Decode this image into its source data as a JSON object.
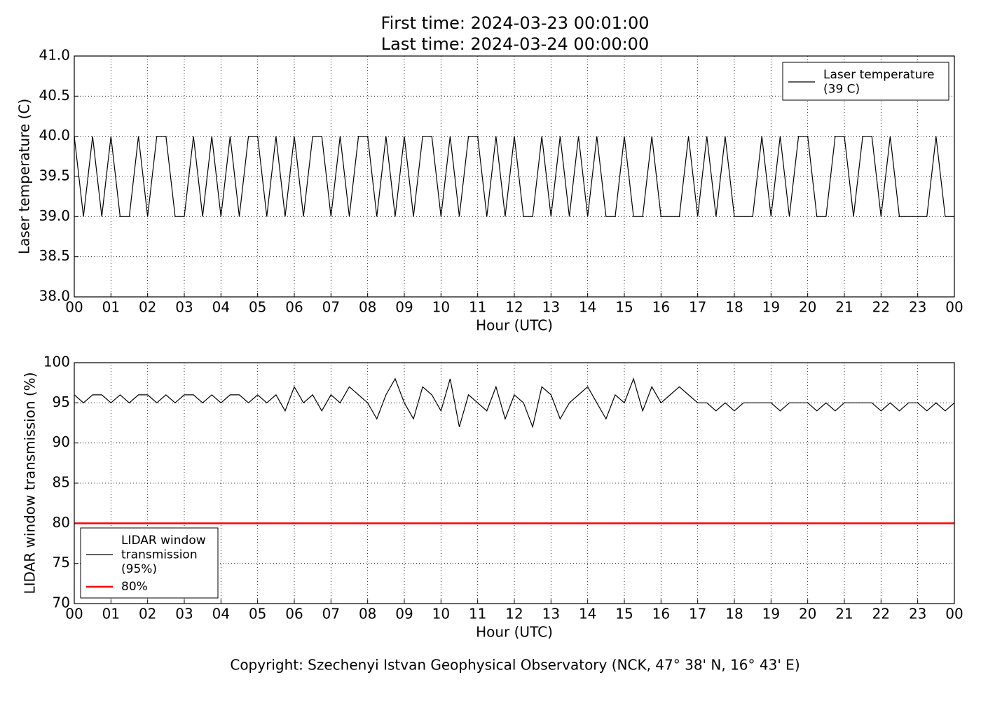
{
  "chart_data": [
    {
      "type": "line",
      "title": "First time: 2024-03-23 00:01:00",
      "subtitle": "Last time: 2024-03-24 00:00:00",
      "x_label": "Hour (UTC)",
      "y_label": "Laser temperature (C)",
      "grid": true,
      "legend": "upper right",
      "xlim": [
        0,
        24
      ],
      "ylim": [
        38,
        41
      ],
      "xticks": [
        {
          "value": 0,
          "label": "00"
        },
        {
          "value": 1,
          "label": "01"
        },
        {
          "value": 2,
          "label": "02"
        },
        {
          "value": 3,
          "label": "03"
        },
        {
          "value": 4,
          "label": "04"
        },
        {
          "value": 5,
          "label": "05"
        },
        {
          "value": 6,
          "label": "06"
        },
        {
          "value": 7,
          "label": "07"
        },
        {
          "value": 8,
          "label": "08"
        },
        {
          "value": 9,
          "label": "09"
        },
        10,
        11,
        12,
        13,
        14,
        15,
        16,
        17,
        18,
        19,
        20,
        21,
        22,
        23,
        {
          "value": 24,
          "label": "00"
        }
      ],
      "yticks": [
        {
          "value": 38,
          "label": "38.0"
        },
        38.5,
        {
          "value": 39,
          "label": "39.0"
        },
        39.5,
        {
          "value": 40,
          "label": "40.0"
        },
        40.5,
        {
          "value": 41,
          "label": "41.0"
        }
      ],
      "x": [
        0,
        0.25,
        0.5,
        0.75,
        1,
        1.25,
        1.5,
        1.75,
        2,
        2.25,
        2.5,
        2.75,
        3,
        3.25,
        3.5,
        3.75,
        4,
        4.25,
        4.5,
        4.75,
        5,
        5.25,
        5.5,
        5.75,
        6,
        6.25,
        6.5,
        6.75,
        7,
        7.25,
        7.5,
        7.75,
        8,
        8.25,
        8.5,
        8.75,
        9,
        9.25,
        9.5,
        9.75,
        10,
        10.25,
        10.5,
        10.75,
        11,
        11.25,
        11.5,
        11.75,
        12,
        12.25,
        12.5,
        12.75,
        13,
        13.25,
        13.5,
        13.75,
        14,
        14.25,
        14.5,
        14.75,
        15,
        15.25,
        15.5,
        15.75,
        16,
        16.25,
        16.5,
        16.75,
        17,
        17.25,
        17.5,
        17.75,
        18,
        18.25,
        18.5,
        18.75,
        19,
        19.25,
        19.5,
        19.75,
        20,
        20.25,
        20.5,
        20.75,
        21,
        21.25,
        21.5,
        21.75,
        22,
        22.25,
        22.5,
        22.75,
        23,
        23.25,
        23.5,
        23.75,
        24
      ],
      "series": [
        {
          "name": "Laser temperature\n(39 C)",
          "color": "#000000",
          "values": [
            40,
            39,
            40,
            39,
            40,
            39,
            39,
            40,
            39,
            40,
            40,
            39,
            39,
            40,
            39,
            40,
            39,
            40,
            39,
            40,
            40,
            39,
            40,
            39,
            40,
            39,
            40,
            40,
            39,
            40,
            39,
            40,
            40,
            39,
            40,
            39,
            40,
            39,
            40,
            40,
            39,
            40,
            39,
            40,
            40,
            39,
            40,
            39,
            40,
            39,
            39,
            40,
            39,
            40,
            39,
            40,
            39,
            40,
            39,
            39,
            40,
            39,
            39,
            40,
            39,
            39,
            39,
            40,
            39,
            40,
            39,
            40,
            39,
            39,
            39,
            40,
            39,
            40,
            39,
            40,
            40,
            39,
            39,
            40,
            40,
            39,
            40,
            40,
            39,
            40,
            39,
            39,
            39,
            39,
            40,
            39,
            39
          ]
        }
      ]
    },
    {
      "type": "line",
      "x_label": "Hour (UTC)",
      "y_label": "LIDAR window transmission (%)",
      "grid": true,
      "legend": "lower left",
      "xlim": [
        0,
        24
      ],
      "ylim": [
        70,
        100
      ],
      "xticks": [
        {
          "value": 0,
          "label": "00"
        },
        {
          "value": 1,
          "label": "01"
        },
        {
          "value": 2,
          "label": "02"
        },
        {
          "value": 3,
          "label": "03"
        },
        {
          "value": 4,
          "label": "04"
        },
        {
          "value": 5,
          "label": "05"
        },
        {
          "value": 6,
          "label": "06"
        },
        {
          "value": 7,
          "label": "07"
        },
        {
          "value": 8,
          "label": "08"
        },
        {
          "value": 9,
          "label": "09"
        },
        10,
        11,
        12,
        13,
        14,
        15,
        16,
        17,
        18,
        19,
        20,
        21,
        22,
        23,
        {
          "value": 24,
          "label": "00"
        }
      ],
      "yticks": [
        70,
        75,
        80,
        85,
        90,
        95,
        100
      ],
      "x": [
        0,
        0.25,
        0.5,
        0.75,
        1,
        1.25,
        1.5,
        1.75,
        2,
        2.25,
        2.5,
        2.75,
        3,
        3.25,
        3.5,
        3.75,
        4,
        4.25,
        4.5,
        4.75,
        5,
        5.25,
        5.5,
        5.75,
        6,
        6.25,
        6.5,
        6.75,
        7,
        7.25,
        7.5,
        7.75,
        8,
        8.25,
        8.5,
        8.75,
        9,
        9.25,
        9.5,
        9.75,
        10,
        10.25,
        10.5,
        10.75,
        11,
        11.25,
        11.5,
        11.75,
        12,
        12.25,
        12.5,
        12.75,
        13,
        13.25,
        13.5,
        13.75,
        14,
        14.25,
        14.5,
        14.75,
        15,
        15.25,
        15.5,
        15.75,
        16,
        16.25,
        16.5,
        16.75,
        17,
        17.25,
        17.5,
        17.75,
        18,
        18.25,
        18.5,
        18.75,
        19,
        19.25,
        19.5,
        19.75,
        20,
        20.25,
        20.5,
        20.75,
        21,
        21.25,
        21.5,
        21.75,
        22,
        22.25,
        22.5,
        22.75,
        23,
        23.25,
        23.5,
        23.75,
        24
      ],
      "series": [
        {
          "name": "LIDAR window\ntransmission\n(95%)",
          "color": "#000000",
          "values": [
            96,
            95,
            96,
            96,
            95,
            96,
            95,
            96,
            96,
            95,
            96,
            95,
            96,
            96,
            95,
            96,
            95,
            96,
            96,
            95,
            96,
            95,
            96,
            94,
            97,
            95,
            96,
            94,
            96,
            95,
            97,
            96,
            95,
            93,
            96,
            98,
            95,
            93,
            97,
            96,
            94,
            98,
            92,
            96,
            95,
            94,
            97,
            93,
            96,
            95,
            92,
            97,
            96,
            93,
            95,
            96,
            97,
            95,
            93,
            96,
            95,
            98,
            94,
            97,
            95,
            96,
            97,
            96,
            95,
            95,
            94,
            95,
            94,
            95,
            95,
            95,
            95,
            94,
            95,
            95,
            95,
            94,
            95,
            94,
            95,
            95,
            95,
            95,
            94,
            95,
            94,
            95,
            95,
            94,
            95,
            94,
            95
          ]
        },
        {
          "name": "80%",
          "color": "#ff0000",
          "x": [
            0,
            24
          ],
          "values": [
            80,
            80
          ]
        }
      ]
    }
  ],
  "copyright": "Copyright: Szechenyi Istvan Geophysical Observatory (NCK, 47° 38' N, 16° 43' E)"
}
